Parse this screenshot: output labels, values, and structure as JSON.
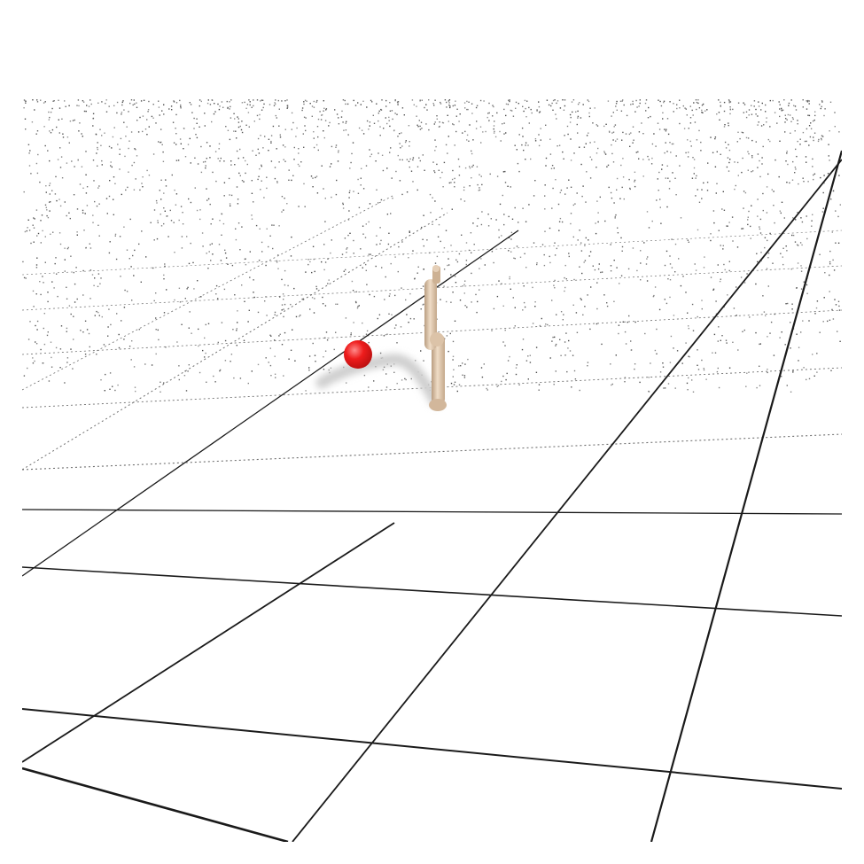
{
  "scene": {
    "name": "physics-simulation-render",
    "colors": {
      "background": "#ffffff",
      "grid_near": "#1a1a1a",
      "grid_far": "#6f6f6f",
      "target": "#ee1c1c",
      "target_highlight": "#ff8a8a",
      "body": "#d9bfa3",
      "body_shade": "#b99d80",
      "body_light": "#efdcc6",
      "shadow": "#cfcfcf"
    },
    "objects": [
      {
        "name": "target-sphere",
        "kind": "sphere",
        "color": "red"
      },
      {
        "name": "two-link-agent",
        "kind": "articulated-body",
        "color": "tan"
      }
    ]
  }
}
